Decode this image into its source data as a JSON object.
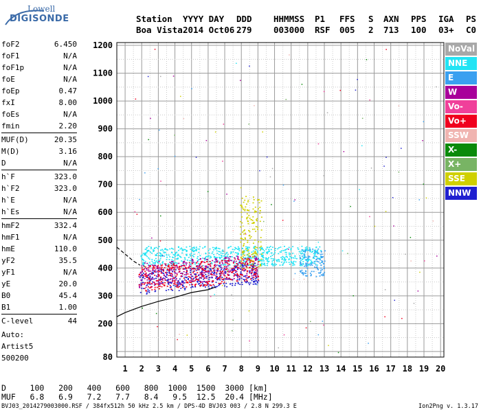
{
  "logo": {
    "line1": "Lowell",
    "line2": "DIGISONDE"
  },
  "header": {
    "labels": [
      "Station",
      "YYYY DAY",
      "DDD",
      "HHMMSS",
      "P1",
      "FFS",
      "S",
      "AXN",
      "PPS",
      "IGA",
      "PS"
    ],
    "values": [
      "Boa Vista",
      "2014 Oct06",
      "279",
      "003000",
      "RSF",
      "005",
      "2",
      "713",
      "100",
      "03+",
      "C0"
    ]
  },
  "params": [
    [
      {
        "name": "foF2",
        "value": "6.450"
      },
      {
        "name": "foF1",
        "value": "N/A"
      },
      {
        "name": "foF1p",
        "value": "N/A"
      },
      {
        "name": "foE",
        "value": "N/A"
      },
      {
        "name": "foEp",
        "value": "0.47"
      },
      {
        "name": "fxI",
        "value": "8.00"
      },
      {
        "name": "foEs",
        "value": "N/A"
      },
      {
        "name": "fmin",
        "value": "2.20"
      }
    ],
    [
      {
        "name": "MUF(D)",
        "value": "20.35"
      },
      {
        "name": "M(D)",
        "value": "3.16"
      },
      {
        "name": "D",
        "value": "N/A"
      }
    ],
    [
      {
        "name": "h`F",
        "value": "323.0"
      },
      {
        "name": "h`F2",
        "value": "323.0"
      },
      {
        "name": "h`E",
        "value": "N/A"
      },
      {
        "name": "h`Es",
        "value": "N/A"
      }
    ],
    [
      {
        "name": "hmF2",
        "value": "332.4"
      },
      {
        "name": "hmF1",
        "value": "N/A"
      },
      {
        "name": "hmE",
        "value": "110.0"
      },
      {
        "name": "yF2",
        "value": "35.5"
      },
      {
        "name": "yF1",
        "value": "N/A"
      },
      {
        "name": "yE",
        "value": "20.0"
      },
      {
        "name": "B0",
        "value": "45.4"
      },
      {
        "name": "B1",
        "value": "1.00"
      }
    ],
    [
      {
        "name": "C-level",
        "value": "44"
      }
    ]
  ],
  "auto": {
    "line1": "Auto:",
    "line2": "Artist5",
    "line3": "500200"
  },
  "muf_table": {
    "d_label": "D",
    "d_values": [
      "100",
      "200",
      "400",
      "600",
      "800",
      "1000",
      "1500",
      "3000"
    ],
    "d_unit": "[km]",
    "muf_label": "MUF",
    "muf_values": [
      "6.8",
      "6.9",
      "7.2",
      "7.7",
      "8.4",
      "9.5",
      "12.5",
      "20.4"
    ],
    "muf_unit": "[MHz]"
  },
  "footer": {
    "left": "BVJ03_2014279003000.RSF / 384fx512h 50 kHz 2.5 km / DPS-4D BVJ03 003 / 2.8 N 299.3 E",
    "right": "Ion2Png v. 1.3.17"
  },
  "legend": [
    {
      "label": "NoVal",
      "color": "#a8a8a8"
    },
    {
      "label": "NNE",
      "color": "#22e4f4"
    },
    {
      "label": "E",
      "color": "#3aa0f0"
    },
    {
      "label": "W",
      "color": "#a8009a"
    },
    {
      "label": "Vo-",
      "color": "#f0409a"
    },
    {
      "label": "Vo+",
      "color": "#f0001e"
    },
    {
      "label": "SSW",
      "color": "#f0b4b0"
    },
    {
      "label": "X-",
      "color": "#0a8a0a"
    },
    {
      "label": "X+",
      "color": "#78b464"
    },
    {
      "label": "SSE",
      "color": "#d0d000"
    },
    {
      "label": "NNW",
      "color": "#2020d0"
    }
  ],
  "chart_data": {
    "type": "scatter",
    "x_ticks": [
      "1",
      "2",
      "3",
      "4",
      "5",
      "6",
      "7",
      "8",
      "9",
      "10",
      "11",
      "12",
      "13",
      "14",
      "15",
      "16",
      "17",
      "18",
      "19",
      "20"
    ],
    "y_ticks": [
      "80",
      "200",
      "300",
      "400",
      "500",
      "600",
      "700",
      "800",
      "900",
      "1000",
      "1100",
      "1200"
    ],
    "xlim": [
      0.5,
      20.2
    ],
    "ylim": [
      80,
      1210
    ],
    "grid": true,
    "legend_position": "right",
    "ionogram_clusters": [
      {
        "mode": "NNE",
        "color": "#22e4f4",
        "x_range": [
          1.9,
          12.8
        ],
        "h_range": [
          410,
          480
        ]
      },
      {
        "mode": "W",
        "color": "#a8009a",
        "x_range": [
          1.8,
          9.0
        ],
        "h_range": [
          330,
          420
        ]
      },
      {
        "mode": "NNW",
        "color": "#2020d0",
        "x_range": [
          1.8,
          9.0
        ],
        "h_range": [
          305,
          390
        ]
      },
      {
        "mode": "Vo+",
        "color": "#f0001e",
        "x_range": [
          1.8,
          9.0
        ],
        "h_range": [
          315,
          410
        ]
      },
      {
        "mode": "SSE",
        "color": "#d0d000",
        "x_range": [
          7.9,
          9.2
        ],
        "h_range": [
          400,
          660
        ]
      },
      {
        "mode": "E",
        "color": "#3aa0f0",
        "x_range": [
          11.5,
          13.0
        ],
        "h_range": [
          370,
          470
        ]
      }
    ],
    "profile_curves": [
      {
        "name": "solid",
        "x": [
          0.5,
          1.0,
          2.0,
          3.0,
          4.0,
          5.0,
          6.0,
          6.45
        ],
        "h": [
          225,
          240,
          262,
          280,
          295,
          312,
          322,
          332
        ]
      },
      {
        "name": "dashed",
        "x": [
          0.5,
          1.0,
          1.5,
          1.9
        ],
        "h": [
          475,
          450,
          425,
          410
        ]
      }
    ]
  }
}
